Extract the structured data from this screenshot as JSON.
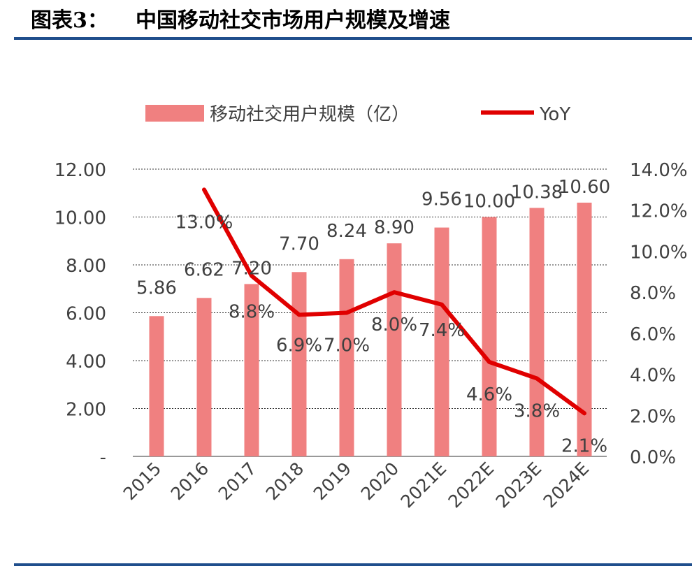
{
  "header": {
    "figure_label": "图表3：",
    "title": "中国移动社交市场用户规模及增速"
  },
  "chart_data": {
    "type": "bar",
    "categories": [
      "2015",
      "2016",
      "2017",
      "2018",
      "2019",
      "2020",
      "2021E",
      "2022E",
      "2023E",
      "2024E"
    ],
    "series": [
      {
        "name": "移动社交用户规模（亿）",
        "type": "bar",
        "axis": "left",
        "values": [
          5.86,
          6.62,
          7.2,
          7.7,
          8.24,
          8.9,
          9.56,
          10.0,
          10.38,
          10.6
        ],
        "labels": [
          "5.86",
          "6.62",
          "7.20",
          "7.70",
          "8.24",
          "8.90",
          "9.56",
          "10.00",
          "10.38",
          "10.60"
        ],
        "color": "#f08080"
      },
      {
        "name": "YoY",
        "type": "line",
        "axis": "right",
        "values": [
          null,
          13.0,
          8.8,
          6.9,
          7.0,
          8.0,
          7.4,
          4.6,
          3.8,
          2.1
        ],
        "labels": [
          null,
          "13.0%",
          "8.8%",
          "6.9%",
          "7.0%",
          "8.0%",
          "7.4%",
          "4.6%",
          "3.8%",
          "2.1%"
        ],
        "color": "#e00000"
      }
    ],
    "y_left": {
      "min": 0,
      "max": 12,
      "ticks": [
        0,
        2,
        4,
        6,
        8,
        10,
        12
      ],
      "tick_labels": [
        "-",
        "2.00",
        "4.00",
        "6.00",
        "8.00",
        "10.00",
        "12.00"
      ]
    },
    "y_right": {
      "min": 0,
      "max": 14,
      "ticks": [
        0,
        2,
        4,
        6,
        8,
        10,
        12,
        14
      ],
      "tick_labels": [
        "0.0%",
        "2.0%",
        "4.0%",
        "6.0%",
        "8.0%",
        "10.0%",
        "12.0%",
        "14.0%"
      ]
    },
    "grid": "horizontal-dotted",
    "legend_position": "top",
    "text_color": "#404040"
  }
}
